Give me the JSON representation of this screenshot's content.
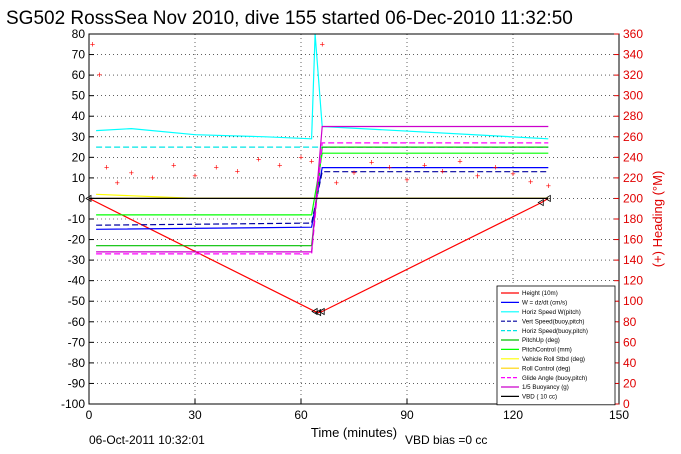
{
  "title": "SG502 RossSea Nov 2010, dive 155 started 06-Dec-2010 11:32:50",
  "xlabel": "Time (minutes)",
  "ylabel_right": "(+) Heading (°M)",
  "footer": {
    "date": "06-Oct-2011 10:32:01",
    "vbd_bias": "VBD bias =0 cc"
  },
  "colors": {
    "height": "#ff0000",
    "w": "#0000ff",
    "horz_speed_w": "#00ffff",
    "vert_speed": "#0000a0",
    "horz_speed_buoy": "#00e5e5",
    "pitch_up": "#00c000",
    "pitch_control": "#00ff00",
    "vehicle_roll": "#ffff00",
    "roll_control": "#ffd400",
    "glide_angle": "#ff00ff",
    "buoyancy": "#cc00cc",
    "vbd": "#000000",
    "heading": "#ff0000"
  },
  "chart_data": {
    "type": "line",
    "title": "SG502 RossSea Nov 2010, dive 155 started 06-Dec-2010 11:32:50",
    "xlabel": "Time (minutes)",
    "ylabel": "",
    "ylabel_right": "(+) Heading (°M)",
    "xlim": [
      0,
      150
    ],
    "ylim": [
      -100,
      80
    ],
    "ylim_right": [
      0,
      360
    ],
    "xticks": [
      0,
      30,
      60,
      90,
      120,
      150
    ],
    "yticks": [
      80,
      70,
      60,
      50,
      40,
      30,
      20,
      10,
      0,
      -10,
      -20,
      -30,
      -40,
      -50,
      -60,
      -70,
      -80,
      -90,
      -100
    ],
    "yticks_right": [
      360,
      340,
      320,
      300,
      280,
      260,
      240,
      220,
      200,
      180,
      160,
      140,
      120,
      100,
      80,
      60,
      40,
      20,
      0
    ],
    "grid": true,
    "legend_position": "bottom-right",
    "series": [
      {
        "name": "Height (10m)",
        "x": [
          0,
          64,
          65,
          66,
          128,
          130
        ],
        "values": [
          0,
          -55,
          -55.5,
          -55,
          -2,
          0
        ]
      },
      {
        "name": "W = dz/dt (cm/s)",
        "x": [
          2,
          63,
          66,
          130
        ],
        "values": [
          -15,
          -14,
          15,
          15
        ]
      },
      {
        "name": "Horiz Speed W(pitch)",
        "x": [
          2,
          12,
          30,
          50,
          63,
          64,
          66,
          130
        ],
        "values": [
          33,
          34,
          31,
          30,
          29,
          80,
          35,
          29
        ]
      },
      {
        "name": "Vert Speed(buoy,pitch)",
        "x": [
          2,
          63,
          66,
          130
        ],
        "values": [
          -13,
          -12,
          13,
          13
        ]
      },
      {
        "name": "Horiz Speed(buoy,pitch)",
        "x": [
          2,
          63,
          66,
          130
        ],
        "values": [
          25,
          25,
          25,
          25
        ]
      },
      {
        "name": "PitchUp (deg)",
        "x": [
          2,
          63,
          66,
          130
        ],
        "values": [
          -23,
          -23,
          25,
          25
        ]
      },
      {
        "name": "PitchControl (mm)",
        "x": [
          2,
          63,
          66,
          130
        ],
        "values": [
          -8,
          -8,
          22,
          22
        ]
      },
      {
        "name": "Vehicle Roll Stbd (deg)",
        "x": [
          2,
          30,
          63,
          66,
          130
        ],
        "values": [
          2,
          0,
          0,
          0,
          0
        ]
      },
      {
        "name": "Roll Control (deg)",
        "x": [
          2,
          63,
          66,
          130
        ],
        "values": [
          0,
          0,
          0,
          0
        ]
      },
      {
        "name": "Glide Angle (buoy,pitch)",
        "x": [
          2,
          63,
          66,
          130
        ],
        "values": [
          -27,
          -27,
          27,
          27
        ]
      },
      {
        "name": "1/5 Buoyancy (g)",
        "x": [
          2,
          63,
          66,
          130
        ],
        "values": [
          -26,
          -26,
          35,
          35
        ]
      },
      {
        "name": "VBD ( 10 cc)",
        "x": [
          0,
          63,
          66,
          130
        ],
        "values": [
          0,
          0,
          0,
          0
        ]
      },
      {
        "name": "(+) Heading (°M)",
        "axis": "right",
        "x": [
          1,
          3,
          5,
          8,
          12,
          18,
          24,
          30,
          36,
          42,
          48,
          54,
          60,
          63,
          66,
          70,
          75,
          80,
          85,
          90,
          95,
          100,
          105,
          110,
          115,
          120,
          125,
          130
        ],
        "values": [
          350,
          320,
          230,
          215,
          225,
          220,
          232,
          222,
          230,
          226,
          238,
          232,
          240,
          236,
          350,
          215,
          225,
          235,
          230,
          218,
          232,
          226,
          236,
          222,
          230,
          224,
          216,
          212
        ]
      }
    ],
    "legend": [
      "Height (10m)",
      "W = dz/dt (cm/s)",
      "Horiz Speed W(pitch)",
      "Vert Speed(buoy,pitch)",
      "Horiz Speed(buoy,pitch)",
      "PitchUp (deg)",
      "PitchControl (mm)",
      "Vehicle Roll Stbd (deg)",
      "Roll Control (deg)",
      "Glide Angle (buoy,pitch)",
      "1/5 Buoyancy (g)",
      "VBD ( 10 cc)"
    ]
  }
}
